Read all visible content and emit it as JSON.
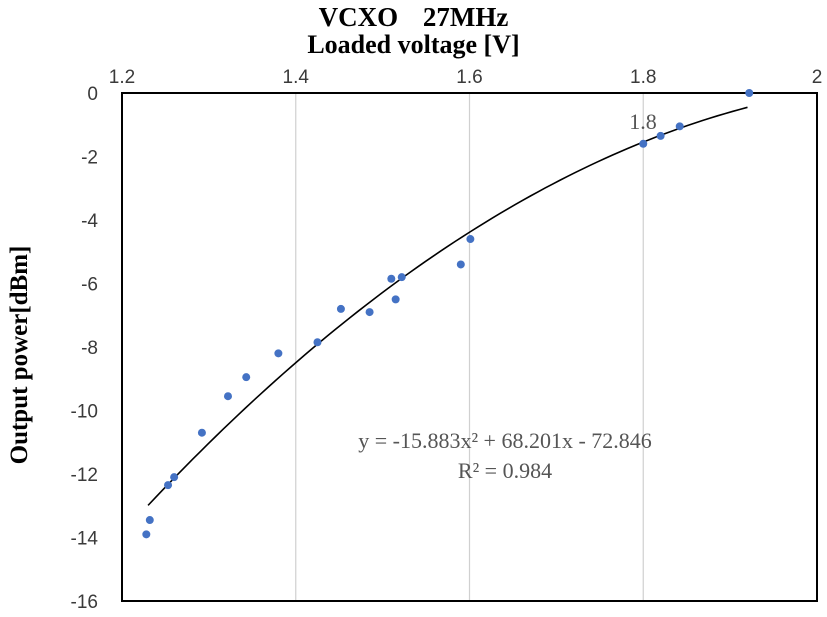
{
  "chart_data": {
    "type": "scatter",
    "title": "VCXO    27MHz",
    "xlabel": "Loaded voltage [V]",
    "ylabel": "Output power[dBm]",
    "xlim": [
      1.2,
      2.0
    ],
    "ylim": [
      -16,
      0
    ],
    "x_ticks": [
      "1.2",
      "1.4",
      "1.6",
      "1.8",
      "2"
    ],
    "y_ticks": [
      "0",
      "-2",
      "-4",
      "-6",
      "-8",
      "-10",
      "-12",
      "-14",
      "-16"
    ],
    "x_axis_position": "top",
    "grid": "vertical",
    "marker_color": "#4472c4",
    "trendline": {
      "type": "polynomial",
      "order": 2,
      "coefficients": [
        -15.883,
        68.201,
        -72.846
      ],
      "x_range": [
        1.23,
        1.92
      ],
      "equation_label": "y = -15.883x² + 68.201x - 72.846",
      "r2_label": "R² = 0.984",
      "color": "#000000"
    },
    "point_annotation": "1.8",
    "points": [
      {
        "x": 1.228,
        "y": -13.9
      },
      {
        "x": 1.232,
        "y": -13.45
      },
      {
        "x": 1.253,
        "y": -12.35
      },
      {
        "x": 1.26,
        "y": -12.1
      },
      {
        "x": 1.292,
        "y": -10.7
      },
      {
        "x": 1.322,
        "y": -9.55
      },
      {
        "x": 1.343,
        "y": -8.95
      },
      {
        "x": 1.38,
        "y": -8.2
      },
      {
        "x": 1.425,
        "y": -7.85
      },
      {
        "x": 1.452,
        "y": -6.8
      },
      {
        "x": 1.485,
        "y": -6.9
      },
      {
        "x": 1.51,
        "y": -5.85
      },
      {
        "x": 1.515,
        "y": -6.5
      },
      {
        "x": 1.522,
        "y": -5.8
      },
      {
        "x": 1.59,
        "y": -5.4
      },
      {
        "x": 1.601,
        "y": -4.6
      },
      {
        "x": 1.8,
        "y": -1.6
      },
      {
        "x": 1.82,
        "y": -1.35
      },
      {
        "x": 1.842,
        "y": -1.05
      },
      {
        "x": 1.922,
        "y": 0.0
      }
    ]
  }
}
